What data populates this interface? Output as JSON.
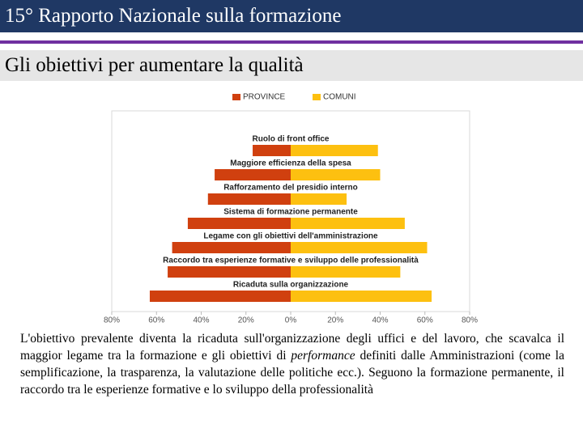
{
  "header": {
    "title": "15° Rapporto Nazionale sulla formazione",
    "subtitle": "Gli obiettivi per aumentare la qualità"
  },
  "chart_data": {
    "type": "butterfly",
    "categories": [
      "Ruolo di front office",
      "Maggiore efficienza della spesa",
      "Rafforzamento del presidio interno",
      "Sistema di formazione permanente",
      "Legame con gli obiettivi dell'amministrazione",
      "Raccordo tra esperienze formative e sviluppo delle professionalità",
      "Ricaduta sulla organizzazione"
    ],
    "series": [
      {
        "name": "PROVINCE",
        "color": "#d0400f",
        "values": [
          -17,
          -34,
          -37,
          -46,
          -53,
          -55,
          -63
        ]
      },
      {
        "name": "COMUNI",
        "color": "#fdc010",
        "values": [
          39,
          40,
          25,
          51,
          61,
          49,
          63
        ]
      }
    ],
    "xlim": [
      -80,
      80
    ],
    "xticks": [
      {
        "value": -80,
        "label": "80%"
      },
      {
        "value": -60,
        "label": "60%"
      },
      {
        "value": -40,
        "label": "40%"
      },
      {
        "value": -20,
        "label": "20%"
      },
      {
        "value": 0,
        "label": "0%"
      },
      {
        "value": 20,
        "label": "20%"
      },
      {
        "value": 40,
        "label": "40%"
      },
      {
        "value": 60,
        "label": "60%"
      },
      {
        "value": 80,
        "label": "80%"
      }
    ]
  },
  "paragraph": [
    "L'obiettivo prevalente diventa la ricaduta sull'organizzazione degli uffici e del lavoro, che scavalca il maggior legame tra la formazione e gli obiettivi di ",
    "performance",
    " definiti dalle Amministrazioni (come la semplificazione, la trasparenza, la valutazione delle politiche ecc.). Seguono la formazione permanente, il raccordo tra le esperienze formative e lo sviluppo della professionalità"
  ]
}
